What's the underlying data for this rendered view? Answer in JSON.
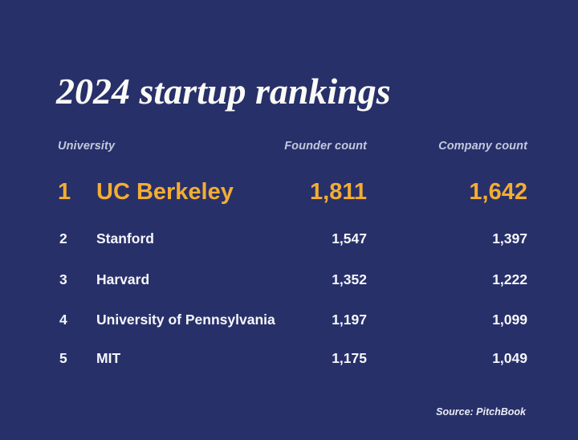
{
  "title": "2024 startup rankings",
  "table": {
    "headers": {
      "university": "University",
      "founder": "Founder count",
      "company": "Company count"
    },
    "rows": [
      {
        "rank": "1",
        "university": "UC Berkeley",
        "founder_count": "1,811",
        "company_count": "1,642"
      },
      {
        "rank": "2",
        "university": "Stanford",
        "founder_count": "1,547",
        "company_count": "1,397"
      },
      {
        "rank": "3",
        "university": "Harvard",
        "founder_count": "1,352",
        "company_count": "1,222"
      },
      {
        "rank": "4",
        "university": "University of Pennsylvania",
        "founder_count": "1,197",
        "company_count": "1,099"
      },
      {
        "rank": "5",
        "university": "MIT",
        "founder_count": "1,175",
        "company_count": "1,049"
      }
    ]
  },
  "source": "Source: PitchBook",
  "colors": {
    "background": "#28306A",
    "highlight_gold": "#F2AD33",
    "header_text": "#C1C9DE",
    "row_text": "#F6F7FA",
    "title_text": "#FBFBF6"
  },
  "chart_data": {
    "type": "table",
    "title": "2024 startup rankings",
    "columns": [
      "University",
      "Founder count",
      "Company count"
    ],
    "rows": [
      [
        "UC Berkeley",
        1811,
        1642
      ],
      [
        "Stanford",
        1547,
        1397
      ],
      [
        "Harvard",
        1352,
        1222
      ],
      [
        "University of Pennsylvania",
        1197,
        1099
      ],
      [
        "MIT",
        1175,
        1049
      ]
    ],
    "highlighted_row": "UC Berkeley",
    "source": "Source: PitchBook",
    "layout": {
      "rank_column": true,
      "highlight_color": "#F2AD33",
      "background": "#28306A"
    }
  }
}
